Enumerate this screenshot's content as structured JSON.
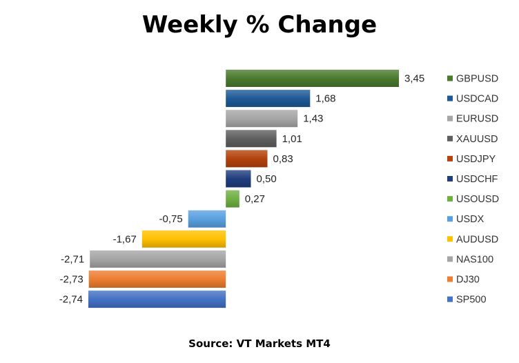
{
  "chart_data": {
    "type": "bar",
    "orientation": "horizontal",
    "title": "Weekly % Change",
    "source": "Source: VT Markets MT4",
    "legend_position": "right",
    "grid": false,
    "xlim": [
      -2.74,
      3.45
    ],
    "bars": [
      {
        "name": "GBPUSD",
        "value": 3.45,
        "label": "3,45",
        "color": "#4a7a2e"
      },
      {
        "name": "USDCAD",
        "value": 1.68,
        "label": "1,68",
        "color": "#1f5a96"
      },
      {
        "name": "EURUSD",
        "value": 1.43,
        "label": "1,43",
        "color": "#a6a6a6"
      },
      {
        "name": "XAUUSD",
        "value": 1.01,
        "label": "1,01",
        "color": "#5f5f5f"
      },
      {
        "name": "USDJPY",
        "value": 0.83,
        "label": "0,83",
        "color": "#b4430d"
      },
      {
        "name": "USDCHF",
        "value": 0.5,
        "label": "0,50",
        "color": "#203d7e"
      },
      {
        "name": "USOUSD",
        "value": 0.27,
        "label": "0,27",
        "color": "#6fb042"
      },
      {
        "name": "USDX",
        "value": -0.75,
        "label": "-0,75",
        "color": "#5aa0e0"
      },
      {
        "name": "AUDUSD",
        "value": -1.67,
        "label": "-1,67",
        "color": "#ffc000"
      },
      {
        "name": "NAS100",
        "value": -2.71,
        "label": "-2,71",
        "color": "#a5a5a5"
      },
      {
        "name": "DJ30",
        "value": -2.73,
        "label": "-2,73",
        "color": "#ed7d31"
      },
      {
        "name": "SP500",
        "value": -2.74,
        "label": "-2,74",
        "color": "#4472c4"
      }
    ]
  }
}
